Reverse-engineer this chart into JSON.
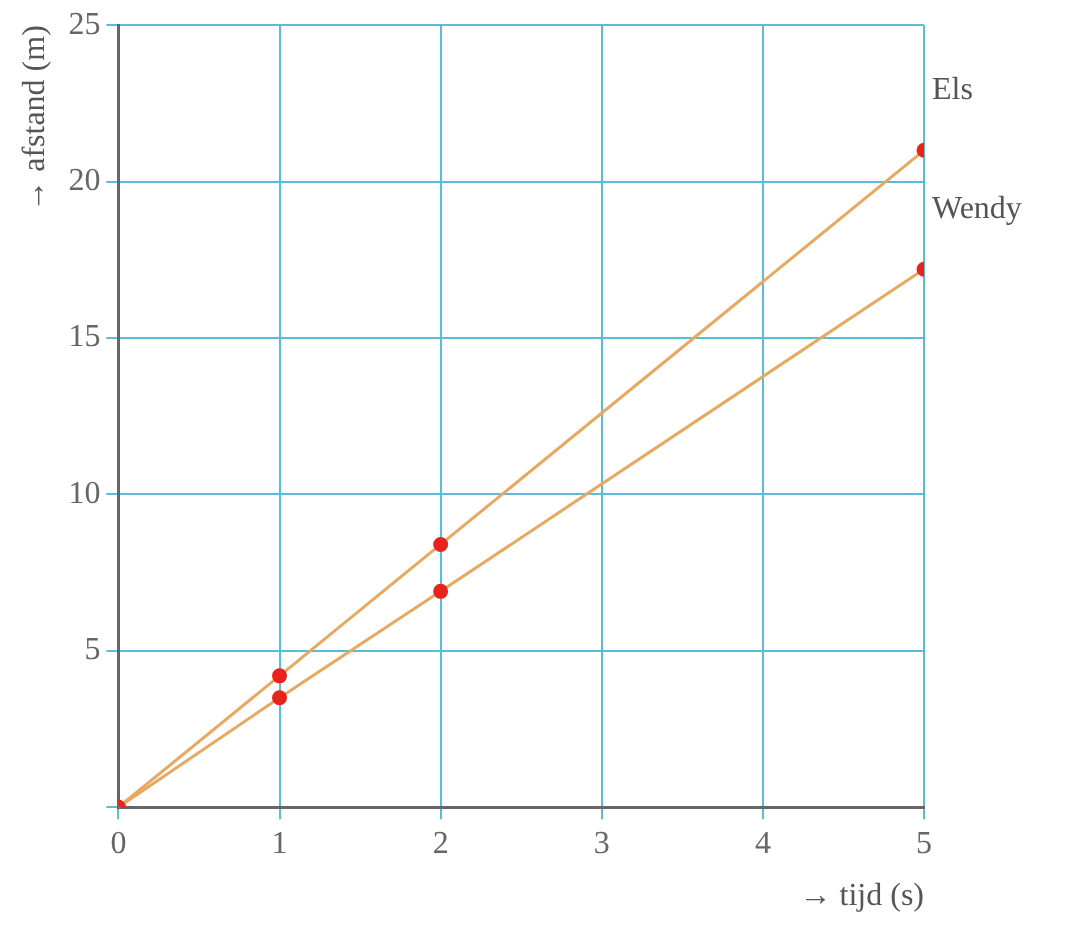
{
  "chart_data": {
    "type": "line",
    "xlabel": "→ tijd (s)",
    "ylabel": "→ afstand (m)",
    "x": [
      0,
      1,
      2,
      5
    ],
    "series": [
      {
        "name": "Els",
        "color": "#e8a860",
        "values": [
          0,
          4.2,
          8.4,
          21
        ]
      },
      {
        "name": "Wendy",
        "color": "#e8a860",
        "values": [
          0,
          3.5,
          6.9,
          17.2
        ]
      }
    ],
    "xlim": [
      0,
      5
    ],
    "ylim": [
      0,
      25
    ],
    "xticks": [
      0,
      1,
      2,
      3,
      4,
      5
    ],
    "yticks": [
      {
        "value": 0,
        "label": null
      },
      5,
      10,
      15,
      20,
      25
    ],
    "grid": true,
    "marker": "circle",
    "legend": false
  }
}
